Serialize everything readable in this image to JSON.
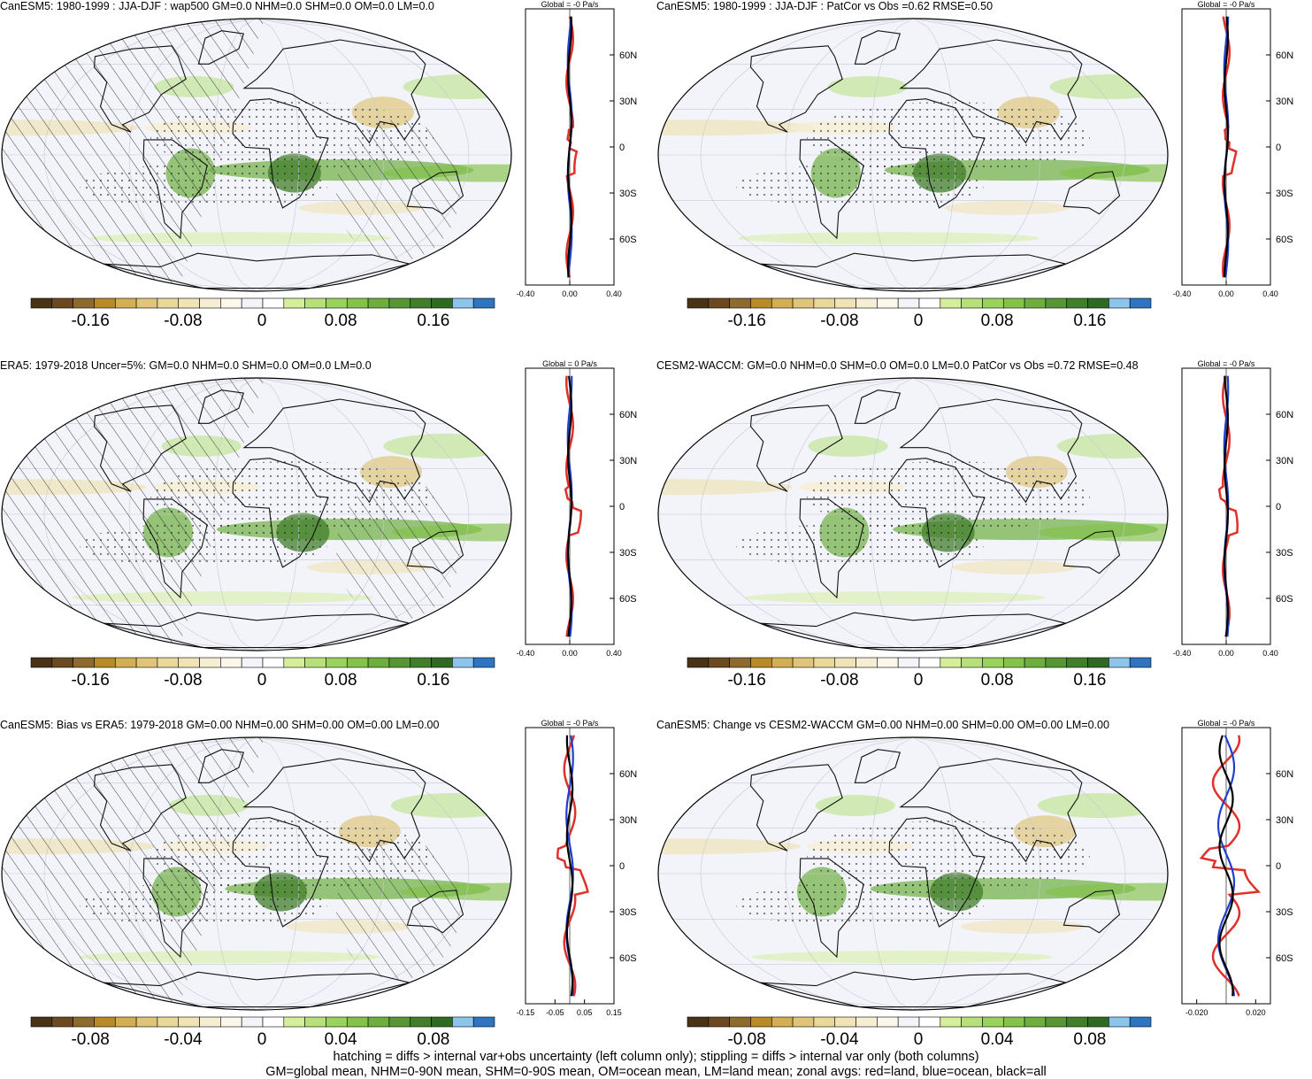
{
  "panels": [
    {
      "title": "CanESM5: 1980-1999 : JJA-DJF : wap500 GM=0.0 NHM=0.0 SHM=0.0 OM=0.0 LM=0.0",
      "hatching": true,
      "colorbar_ticks": [
        "-0.16",
        "-0.08",
        "0",
        "0.08",
        "0.16"
      ],
      "zonal": {
        "title": "Global = -0 Pa/s",
        "lat_ticks": [
          "60N",
          "30N",
          "0",
          "30S",
          "60S"
        ],
        "x_ticks": [
          "-0.40",
          "0.00",
          "0.40"
        ],
        "xlim": [
          -0.4,
          0.4
        ]
      }
    },
    {
      "title": "CanESM5: 1980-1999 : JJA-DJF : PatCor vs Obs =0.62 RMSE=0.50",
      "hatching": false,
      "colorbar_ticks": [
        "-0.16",
        "-0.08",
        "0",
        "0.08",
        "0.16"
      ],
      "zonal": {
        "title": "Global = -0 Pa/s",
        "lat_ticks": [
          "60N",
          "30N",
          "0",
          "30S",
          "60S"
        ],
        "x_ticks": [
          "-0.40",
          "0.00",
          "0.40"
        ],
        "xlim": [
          -0.4,
          0.4
        ]
      }
    },
    {
      "title": "ERA5: 1979-2018 Uncer=5%: GM=0.0 NHM=0.0 SHM=0.0 OM=0.0 LM=0.0",
      "hatching": true,
      "colorbar_ticks": [
        "-0.16",
        "-0.08",
        "0",
        "0.08",
        "0.16"
      ],
      "zonal": {
        "title": "Global = 0 Pa/s",
        "lat_ticks": [
          "60N",
          "30N",
          "0",
          "30S",
          "60S"
        ],
        "x_ticks": [
          "-0.40",
          "0.00",
          "0.40"
        ],
        "xlim": [
          -0.4,
          0.4
        ]
      }
    },
    {
      "title": "CESM2-WACCM: GM=0.0 NHM=0.0 SHM=0.0 OM=0.0 LM=0.0 PatCor vs Obs =0.72 RMSE=0.48",
      "hatching": false,
      "colorbar_ticks": [
        "-0.16",
        "-0.08",
        "0",
        "0.08",
        "0.16"
      ],
      "zonal": {
        "title": "Global = -0 Pa/s",
        "lat_ticks": [
          "60N",
          "30N",
          "0",
          "30S",
          "60S"
        ],
        "x_ticks": [
          "-0.40",
          "0.00",
          "0.40"
        ],
        "xlim": [
          -0.4,
          0.4
        ]
      }
    },
    {
      "title": "CanESM5: Bias vs ERA5: 1979-2018 GM=0.00 NHM=0.00 SHM=0.00 OM=0.00 LM=0.00",
      "hatching": true,
      "colorbar_ticks": [
        "-0.08",
        "-0.04",
        "0",
        "0.04",
        "0.08"
      ],
      "zonal": {
        "title": "Global = -0 Pa/s",
        "lat_ticks": [
          "60N",
          "30N",
          "0",
          "30S",
          "60S"
        ],
        "x_ticks": [
          "-0.15",
          "-0.05",
          "0.05",
          "0.15"
        ],
        "xlim": [
          -0.15,
          0.15
        ]
      }
    },
    {
      "title": "CanESM5: Change vs CESM2-WACCM GM=0.00 NHM=0.00 SHM=0.00 OM=0.00 LM=0.00",
      "hatching": false,
      "colorbar_ticks": [
        "-0.08",
        "-0.04",
        "0",
        "0.04",
        "0.08"
      ],
      "zonal": {
        "title": "Global = -0 Pa/s",
        "lat_ticks": [
          "60N",
          "30N",
          "0",
          "30S",
          "60S"
        ],
        "x_ticks": [
          "-0.020",
          "0.020"
        ],
        "xlim": [
          -0.03,
          0.03
        ]
      }
    }
  ],
  "colors": {
    "palette": [
      "#4a3216",
      "#6b4a22",
      "#8f6a2e",
      "#b88a2a",
      "#d2ae54",
      "#dfc47a",
      "#ead79a",
      "#f0e3b6",
      "#f6eed3",
      "#fbf7ea",
      "#f2f4fa",
      "#ffffff",
      "#d5ee9c",
      "#b7e07a",
      "#9ad25e",
      "#84c24c",
      "#6dae3e",
      "#579634",
      "#417e2a",
      "#2e6a22",
      "#8cc4ec",
      "#2f74c0"
    ],
    "land_line": "#e0302a",
    "ocean_line": "#1f3fcf",
    "all_line": "#000000"
  },
  "footer": {
    "line1": "hatching = diffs > internal var+obs uncertainty (left column only); stippling = diffs > internal var only (both columns)",
    "line2": "GM=global mean, NHM=0-90N mean, SHM=0-90S mean, OM=ocean mean, LM=land mean; zonal avgs: red=land, blue=ocean, black=all"
  }
}
